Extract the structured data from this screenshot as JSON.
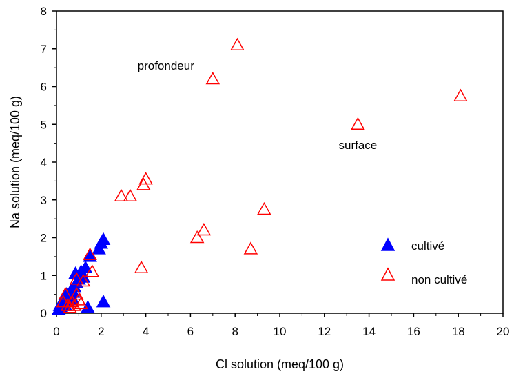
{
  "chart_data": {
    "type": "scatter",
    "title": "",
    "xlabel": "Cl solution (meq/100 g)",
    "ylabel": "Na solution (meq/100 g)",
    "xlim": [
      0,
      20
    ],
    "ylim": [
      0,
      8
    ],
    "xticks": [
      0,
      2,
      4,
      6,
      8,
      10,
      12,
      14,
      16,
      18,
      20
    ],
    "yticks": [
      0,
      1,
      2,
      3,
      4,
      5,
      6,
      7,
      8
    ],
    "grid": false,
    "legend_position": "bottom-right",
    "series": [
      {
        "name": "cultivé",
        "marker": "filled-triangle",
        "color": "#0000ff",
        "points": [
          [
            0.1,
            0.1
          ],
          [
            0.15,
            0.2
          ],
          [
            0.2,
            0.15
          ],
          [
            0.25,
            0.3
          ],
          [
            0.3,
            0.25
          ],
          [
            0.35,
            0.4
          ],
          [
            0.4,
            0.2
          ],
          [
            0.45,
            0.5
          ],
          [
            0.5,
            0.3
          ],
          [
            0.55,
            0.45
          ],
          [
            0.6,
            0.35
          ],
          [
            0.65,
            0.6
          ],
          [
            0.7,
            0.4
          ],
          [
            0.75,
            0.55
          ],
          [
            0.8,
            0.7
          ],
          [
            0.85,
            1.05
          ],
          [
            0.9,
            0.8
          ],
          [
            1.0,
            0.9
          ],
          [
            1.1,
            1.1
          ],
          [
            1.2,
            0.95
          ],
          [
            1.3,
            1.2
          ],
          [
            1.4,
            0.15
          ],
          [
            1.5,
            1.5
          ],
          [
            1.9,
            1.7
          ],
          [
            2.0,
            1.85
          ],
          [
            2.1,
            1.95
          ],
          [
            2.1,
            0.3
          ]
        ]
      },
      {
        "name": "non cultivé",
        "marker": "open-triangle",
        "color": "#ff0000",
        "points": [
          [
            0.3,
            0.3
          ],
          [
            0.4,
            0.5
          ],
          [
            0.5,
            0.2
          ],
          [
            0.6,
            0.15
          ],
          [
            0.7,
            0.3
          ],
          [
            0.8,
            0.2
          ],
          [
            0.9,
            0.5
          ],
          [
            0.9,
            0.9
          ],
          [
            1.0,
            0.35
          ],
          [
            1.1,
            0.25
          ],
          [
            1.2,
            0.85
          ],
          [
            1.5,
            1.55
          ],
          [
            1.6,
            1.1
          ],
          [
            2.9,
            3.1
          ],
          [
            3.3,
            3.1
          ],
          [
            3.9,
            3.4
          ],
          [
            4.0,
            3.55
          ],
          [
            3.8,
            1.2
          ],
          [
            6.3,
            2.0
          ],
          [
            6.6,
            2.2
          ],
          [
            7.0,
            6.2
          ],
          [
            8.1,
            7.1
          ],
          [
            8.7,
            1.7
          ],
          [
            9.3,
            2.75
          ],
          [
            13.5,
            5.0
          ],
          [
            18.1,
            5.75
          ]
        ]
      }
    ],
    "annotations": [
      {
        "text": "profondeur",
        "x": 4.9,
        "y": 6.45
      },
      {
        "text": "surface",
        "x": 13.5,
        "y": 4.35
      }
    ]
  }
}
